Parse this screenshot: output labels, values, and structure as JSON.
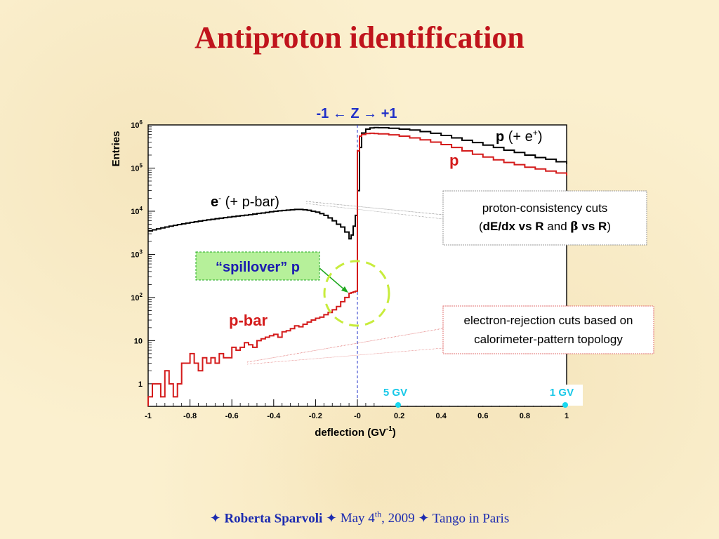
{
  "slide": {
    "title": "Antiproton identification"
  },
  "footer": {
    "star": "✦",
    "author": "Roberta Sparvoli",
    "date_prefix": "May 4",
    "date_sup": "th",
    "date_suffix": ", 2009",
    "event": "Tango in Paris"
  },
  "chart_data": {
    "type": "line",
    "title": "",
    "xlabel": "deflection (GV",
    "xlabel_sup": "-1",
    "xlabel_close": ")",
    "ylabel": "Entries",
    "xlim": [
      -1,
      1
    ],
    "ylim": [
      0.3,
      1000000
    ],
    "yscale": "log",
    "x_ticks": [
      "-1",
      "-0.8",
      "-0.6",
      "-0.4",
      "-0.2",
      "-0",
      "0.2",
      "0.4",
      "0.6",
      "0.8",
      "1"
    ],
    "y_ticks": [
      {
        "base": "1",
        "exp": "",
        "value": 1
      },
      {
        "base": "10",
        "exp": "",
        "value": 10
      },
      {
        "base": "10",
        "exp": "2",
        "value": 100
      },
      {
        "base": "10",
        "exp": "3",
        "value": 1000
      },
      {
        "base": "10",
        "exp": "4",
        "value": 10000
      },
      {
        "base": "10",
        "exp": "5",
        "value": 100000
      },
      {
        "base": "10",
        "exp": "6",
        "value": 1000000
      }
    ],
    "z_direction": "-1 ← Z → +1",
    "series": [
      {
        "name": "",
        "color": "#000000",
        "x": [
          -1.0,
          -0.98,
          -0.96,
          -0.94,
          -0.92,
          -0.9,
          -0.88,
          -0.86,
          -0.84,
          -0.82,
          -0.8,
          -0.78,
          -0.76,
          -0.74,
          -0.72,
          -0.7,
          -0.68,
          -0.66,
          -0.64,
          -0.62,
          -0.6,
          -0.58,
          -0.56,
          -0.54,
          -0.52,
          -0.5,
          -0.48,
          -0.46,
          -0.44,
          -0.42,
          -0.4,
          -0.38,
          -0.36,
          -0.34,
          -0.32,
          -0.3,
          -0.28,
          -0.26,
          -0.24,
          -0.22,
          -0.2,
          -0.18,
          -0.16,
          -0.14,
          -0.12,
          -0.1,
          -0.08,
          -0.06,
          -0.04,
          -0.03,
          -0.02,
          -0.01,
          0.0,
          0.01,
          0.02,
          0.04,
          0.06,
          0.08,
          0.1,
          0.15,
          0.2,
          0.25,
          0.3,
          0.35,
          0.4,
          0.45,
          0.5,
          0.55,
          0.6,
          0.65,
          0.7,
          0.75,
          0.8,
          0.85,
          0.9,
          0.95,
          1.0
        ],
        "values": [
          3500,
          3700,
          3900,
          4100,
          4300,
          4500,
          4700,
          4900,
          5100,
          5300,
          5500,
          5700,
          5900,
          6100,
          6300,
          6500,
          6700,
          6900,
          7100,
          7300,
          7500,
          7700,
          7900,
          8100,
          8300,
          8600,
          8900,
          9100,
          9400,
          9700,
          10000,
          10200,
          10400,
          10600,
          10800,
          11000,
          11000,
          10800,
          10500,
          10000,
          9500,
          8800,
          8000,
          7000,
          6000,
          5000,
          4300,
          3300,
          2300,
          2800,
          4500,
          8000,
          30000,
          300000,
          650000,
          800000,
          850000,
          870000,
          860000,
          840000,
          800000,
          760000,
          700000,
          640000,
          570000,
          500000,
          440000,
          390000,
          340000,
          300000,
          260000,
          230000,
          200000,
          175000,
          160000,
          140000,
          130000
        ]
      },
      {
        "name": "",
        "color": "#d41b1b",
        "x": [
          -1.0,
          -0.98,
          -0.96,
          -0.94,
          -0.92,
          -0.9,
          -0.88,
          -0.86,
          -0.84,
          -0.82,
          -0.8,
          -0.78,
          -0.76,
          -0.74,
          -0.72,
          -0.7,
          -0.68,
          -0.66,
          -0.64,
          -0.62,
          -0.6,
          -0.58,
          -0.56,
          -0.54,
          -0.52,
          -0.5,
          -0.48,
          -0.46,
          -0.44,
          -0.42,
          -0.4,
          -0.38,
          -0.36,
          -0.34,
          -0.32,
          -0.3,
          -0.28,
          -0.26,
          -0.24,
          -0.22,
          -0.2,
          -0.18,
          -0.16,
          -0.14,
          -0.12,
          -0.1,
          -0.08,
          -0.06,
          -0.04,
          -0.03,
          -0.02,
          -0.01,
          0.0,
          0.01,
          0.02,
          0.04,
          0.06,
          0.08,
          0.1,
          0.15,
          0.2,
          0.25,
          0.3,
          0.35,
          0.4,
          0.45,
          0.5,
          0.55,
          0.6,
          0.65,
          0.7,
          0.75,
          0.8,
          0.85,
          0.9,
          0.95,
          1.0
        ],
        "values": [
          0.5,
          1,
          1,
          0.5,
          2,
          1,
          0.5,
          1,
          3,
          3,
          5,
          3,
          2,
          4,
          3,
          4,
          3,
          5,
          4,
          4,
          7,
          6,
          7,
          9,
          8,
          7,
          10,
          11,
          12,
          13,
          14,
          12,
          16,
          17,
          19,
          22,
          21,
          24,
          27,
          30,
          33,
          35,
          40,
          45,
          52,
          62,
          80,
          100,
          125,
          130,
          135,
          140,
          250000,
          550000,
          600000,
          630000,
          640000,
          630000,
          620000,
          590000,
          550000,
          500000,
          450000,
          400000,
          350000,
          300000,
          250000,
          210000,
          180000,
          155000,
          135000,
          120000,
          105000,
          95000,
          85000,
          77000,
          70000
        ]
      }
    ],
    "annotations": [
      {
        "id": "p-total",
        "bold": "p",
        "rest": " (+ e",
        "sup": "+",
        "close": ")"
      },
      {
        "id": "p-red",
        "text": "p"
      },
      {
        "id": "electron",
        "bold": "e",
        "sup": "-",
        "rest": " (+ p-bar)"
      },
      {
        "id": "pbar",
        "text": "p-bar"
      },
      {
        "id": "spillover",
        "text": "“spillover” p"
      },
      {
        "id": "proton-cuts",
        "line1": "proton-consistency cuts",
        "open": "(",
        "b1": "dE/dx  vs R",
        "mid": " and ",
        "beta": "β",
        "b2": " vs R",
        "close": ")"
      },
      {
        "id": "electron-cuts",
        "line1": "electron-rejection cuts based on",
        "line2": "calorimeter-pattern topology"
      },
      {
        "id": "gv5",
        "text": "5 GV",
        "x": 0.2
      },
      {
        "id": "gv1",
        "text": "1 GV",
        "x": 1.0
      }
    ],
    "colors": {
      "title": "#c0141c",
      "footer": "#1c2bb0",
      "z_label": "#2030c8",
      "gv_marker": "#18d8f0",
      "spillover_box": "#b6f09a",
      "spillover_border": "#1fa81f",
      "dashed_circle": "#c8ec3c"
    }
  }
}
